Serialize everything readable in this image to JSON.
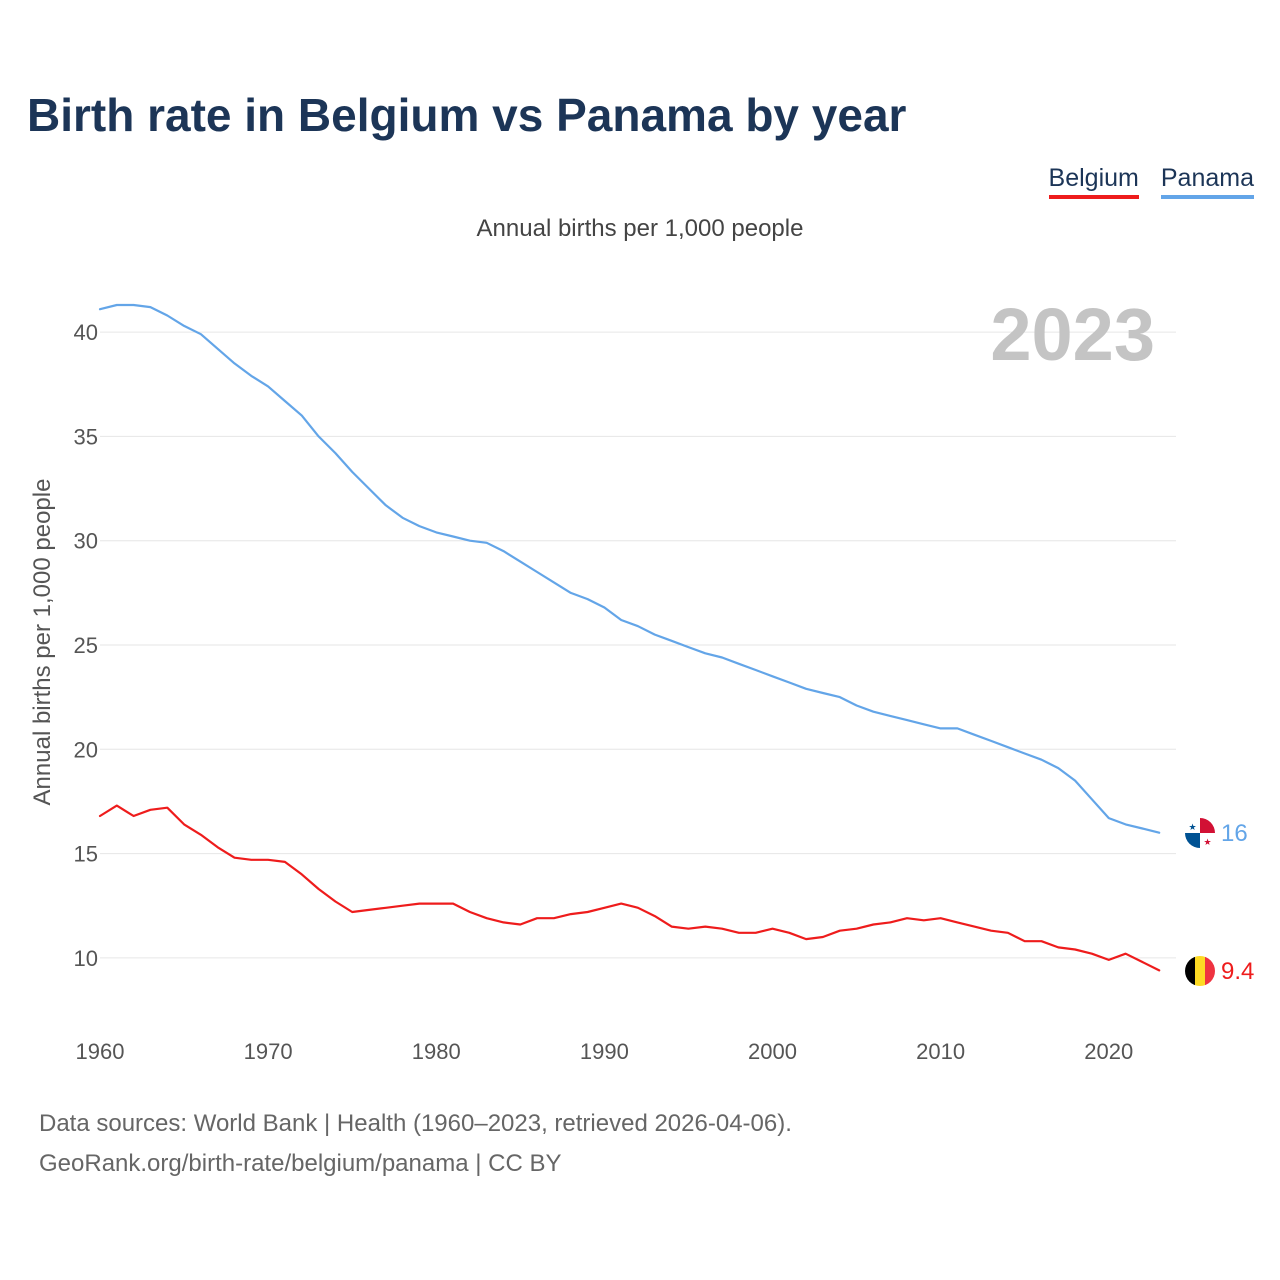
{
  "header": {
    "title": "Birth rate in Belgium vs Panama by year"
  },
  "legend": [
    {
      "label": "Belgium",
      "color": "#ee1c1c"
    },
    {
      "label": "Panama",
      "color": "#63a5e8"
    }
  ],
  "footer": {
    "line1": "Data sources: World Bank | Health (1960–2023, retrieved 2026-04-06).",
    "line2": "GeoRank.org/birth-rate/belgium/panama | CC BY"
  },
  "chart_data": {
    "type": "line",
    "title": "Birth rate in Belgium vs Panama by year",
    "subtitle": "Annual births per 1,000 people",
    "ylabel": "Annual births per 1,000 people",
    "xlabel": "",
    "year_label": "2023",
    "xlim": [
      1960,
      2024
    ],
    "ylim": [
      7.5,
      42.5
    ],
    "x_ticks": [
      1960,
      1970,
      1980,
      1990,
      2000,
      2010,
      2020
    ],
    "y_ticks": [
      10,
      15,
      20,
      25,
      30,
      35,
      40
    ],
    "grid": true,
    "legend_position": "top-right",
    "x": [
      1960,
      1961,
      1962,
      1963,
      1964,
      1965,
      1966,
      1967,
      1968,
      1969,
      1970,
      1971,
      1972,
      1973,
      1974,
      1975,
      1976,
      1977,
      1978,
      1979,
      1980,
      1981,
      1982,
      1983,
      1984,
      1985,
      1986,
      1987,
      1988,
      1989,
      1990,
      1991,
      1992,
      1993,
      1994,
      1995,
      1996,
      1997,
      1998,
      1999,
      2000,
      2001,
      2002,
      2003,
      2004,
      2005,
      2006,
      2007,
      2008,
      2009,
      2010,
      2011,
      2012,
      2013,
      2014,
      2015,
      2016,
      2017,
      2018,
      2019,
      2020,
      2021,
      2022,
      2023
    ],
    "series": [
      {
        "name": "Belgium",
        "color": "#ee1c1c",
        "end_label": "9.4",
        "values": [
          16.8,
          17.3,
          16.8,
          17.1,
          17.2,
          16.4,
          15.9,
          15.3,
          14.8,
          14.7,
          14.7,
          14.6,
          14.0,
          13.3,
          12.7,
          12.2,
          12.3,
          12.4,
          12.5,
          12.6,
          12.6,
          12.6,
          12.2,
          11.9,
          11.7,
          11.6,
          11.9,
          11.9,
          12.1,
          12.2,
          12.4,
          12.6,
          12.4,
          12.0,
          11.5,
          11.4,
          11.5,
          11.4,
          11.2,
          11.2,
          11.4,
          11.2,
          10.9,
          11.0,
          11.3,
          11.4,
          11.6,
          11.7,
          11.9,
          11.8,
          11.9,
          11.7,
          11.5,
          11.3,
          11.2,
          10.8,
          10.8,
          10.5,
          10.4,
          10.2,
          9.9,
          10.2,
          9.8,
          9.4
        ]
      },
      {
        "name": "Panama",
        "color": "#63a5e8",
        "end_label": "16",
        "values": [
          41.1,
          41.3,
          41.3,
          41.2,
          40.8,
          40.3,
          39.9,
          39.2,
          38.5,
          37.9,
          37.4,
          36.7,
          36.0,
          35.0,
          34.2,
          33.3,
          32.5,
          31.7,
          31.1,
          30.7,
          30.4,
          30.2,
          30.0,
          29.9,
          29.5,
          29.0,
          28.5,
          28.0,
          27.5,
          27.2,
          26.8,
          26.2,
          25.9,
          25.5,
          25.2,
          24.9,
          24.6,
          24.4,
          24.1,
          23.8,
          23.5,
          23.2,
          22.9,
          22.7,
          22.5,
          22.1,
          21.8,
          21.6,
          21.4,
          21.2,
          21.0,
          21.0,
          20.7,
          20.4,
          20.1,
          19.8,
          19.5,
          19.1,
          18.5,
          17.6,
          16.7,
          16.4,
          16.2,
          16.0
        ]
      }
    ]
  }
}
